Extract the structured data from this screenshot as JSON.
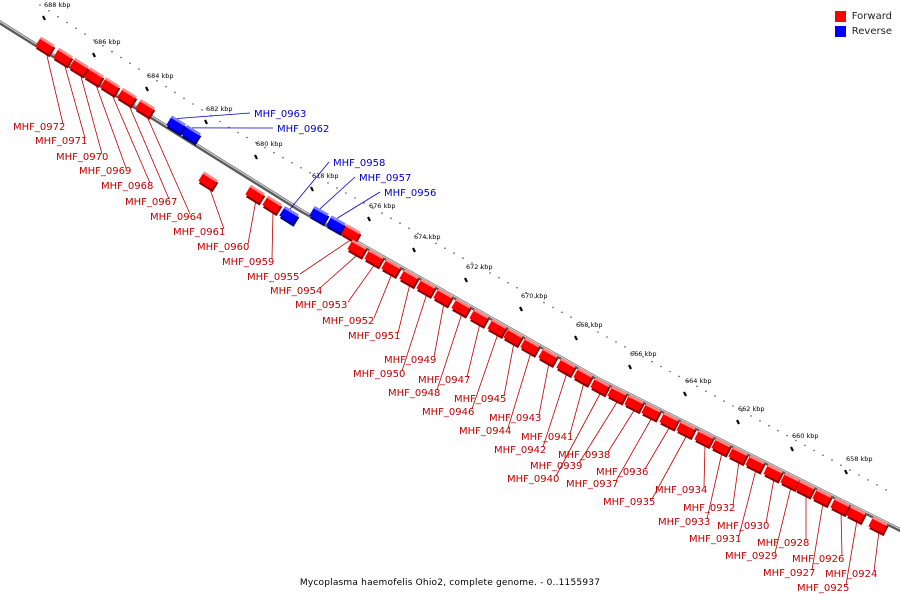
{
  "caption": "Mycoplasma haemofelis Ohio2, complete genome. - 0..1155937",
  "colors": {
    "forward": "#ff0000",
    "reverse": "#0000ff",
    "forward_label": "#c00000",
    "reverse_label": "#0000cc",
    "backbone": "#808080"
  },
  "legend": [
    {
      "label": "Forward",
      "color": "#ff0000"
    },
    {
      "label": "Reverse",
      "color": "#0000ff"
    }
  ],
  "scale": {
    "unit": "kbp",
    "ticks": [
      {
        "kbp": 688,
        "label": "688 kbp"
      },
      {
        "kbp": 686,
        "label": "686 kbp"
      },
      {
        "kbp": 684,
        "label": "684 kbp"
      },
      {
        "kbp": 682,
        "label": "682 kbp"
      },
      {
        "kbp": 680,
        "label": "680 kbp"
      },
      {
        "kbp": 678,
        "label": "678 kbp"
      },
      {
        "kbp": 676,
        "label": "676 kbp"
      },
      {
        "kbp": 674,
        "label": "674 kbp"
      },
      {
        "kbp": 672,
        "label": "672 kbp"
      },
      {
        "kbp": 670,
        "label": "670 kbp"
      },
      {
        "kbp": 668,
        "label": "668 kbp"
      },
      {
        "kbp": 666,
        "label": "666 kbp"
      },
      {
        "kbp": 664,
        "label": "664 kbp"
      },
      {
        "kbp": 662,
        "label": "662 kbp"
      },
      {
        "kbp": 660,
        "label": "660 kbp"
      },
      {
        "kbp": 658,
        "label": "658 kbp"
      }
    ]
  },
  "genes": [
    {
      "name": "MHF_0972",
      "strand": "forward"
    },
    {
      "name": "MHF_0971",
      "strand": "forward"
    },
    {
      "name": "MHF_0970",
      "strand": "forward"
    },
    {
      "name": "MHF_0969",
      "strand": "forward"
    },
    {
      "name": "MHF_0968",
      "strand": "forward"
    },
    {
      "name": "MHF_0967",
      "strand": "forward"
    },
    {
      "name": "MHF_0964",
      "strand": "forward"
    },
    {
      "name": "MHF_0963",
      "strand": "reverse"
    },
    {
      "name": "MHF_0962",
      "strand": "reverse"
    },
    {
      "name": "MHF_0961",
      "strand": "forward"
    },
    {
      "name": "MHF_0960",
      "strand": "forward"
    },
    {
      "name": "MHF_0959",
      "strand": "forward"
    },
    {
      "name": "MHF_0958",
      "strand": "reverse"
    },
    {
      "name": "MHF_0957",
      "strand": "reverse"
    },
    {
      "name": "MHF_0956",
      "strand": "reverse"
    },
    {
      "name": "MHF_0955",
      "strand": "forward"
    },
    {
      "name": "MHF_0954",
      "strand": "forward"
    },
    {
      "name": "MHF_0953",
      "strand": "forward"
    },
    {
      "name": "MHF_0952",
      "strand": "forward"
    },
    {
      "name": "MHF_0951",
      "strand": "forward"
    },
    {
      "name": "MHF_0950",
      "strand": "forward"
    },
    {
      "name": "MHF_0949",
      "strand": "forward"
    },
    {
      "name": "MHF_0948",
      "strand": "forward"
    },
    {
      "name": "MHF_0947",
      "strand": "forward"
    },
    {
      "name": "MHF_0946",
      "strand": "forward"
    },
    {
      "name": "MHF_0945",
      "strand": "forward"
    },
    {
      "name": "MHF_0944",
      "strand": "forward"
    },
    {
      "name": "MHF_0943",
      "strand": "forward"
    },
    {
      "name": "MHF_0942",
      "strand": "forward"
    },
    {
      "name": "MHF_0941",
      "strand": "forward"
    },
    {
      "name": "MHF_0940",
      "strand": "forward"
    },
    {
      "name": "MHF_0939",
      "strand": "forward"
    },
    {
      "name": "MHF_0938",
      "strand": "forward"
    },
    {
      "name": "MHF_0937",
      "strand": "forward"
    },
    {
      "name": "MHF_0936",
      "strand": "forward"
    },
    {
      "name": "MHF_0935",
      "strand": "forward"
    },
    {
      "name": "MHF_0934",
      "strand": "forward"
    },
    {
      "name": "MHF_0933",
      "strand": "forward"
    },
    {
      "name": "MHF_0932",
      "strand": "forward"
    },
    {
      "name": "MHF_0931",
      "strand": "forward"
    },
    {
      "name": "MHF_0930",
      "strand": "forward"
    },
    {
      "name": "MHF_0929",
      "strand": "forward"
    },
    {
      "name": "MHF_0928",
      "strand": "forward"
    },
    {
      "name": "MHF_0927",
      "strand": "forward"
    },
    {
      "name": "MHF_0926",
      "strand": "forward"
    },
    {
      "name": "MHF_0925",
      "strand": "forward"
    },
    {
      "name": "MHF_0924",
      "strand": "forward"
    }
  ]
}
